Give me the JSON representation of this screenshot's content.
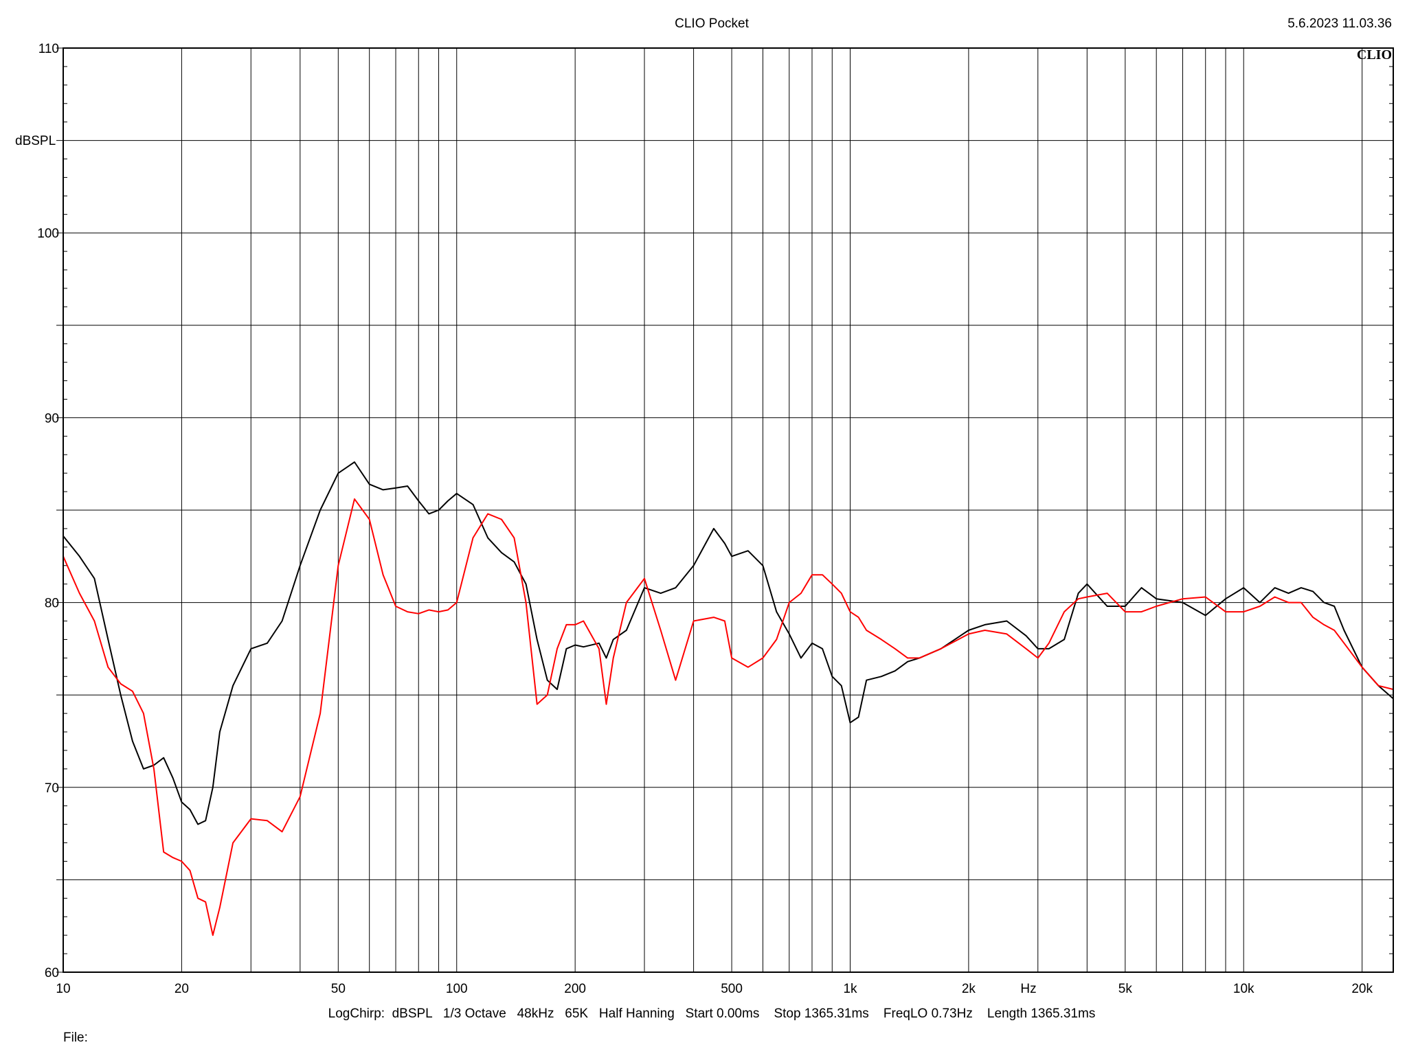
{
  "header": {
    "title": "CLIO Pocket",
    "timestamp": "5.6.2023 11.03.36",
    "logo": "CLIO"
  },
  "footer": {
    "settings": "LogChirp:  dBSPL   1/3 Octave   48kHz   65K   Half Hanning   Start 0.00ms    Stop 1365.31ms    FreqLO 0.73Hz    Length 1365.31ms",
    "file_label": "File:"
  },
  "colors": {
    "series_black": "#000000",
    "series_red": "#ff0000",
    "grid": "#000000"
  },
  "chart_data": {
    "type": "line",
    "title": "CLIO Pocket",
    "xlabel": "Hz",
    "ylabel": "dBSPL",
    "xscale": "log",
    "xlim": [
      10,
      24000
    ],
    "ylim": [
      60,
      110
    ],
    "grid": true,
    "x_ticks": [
      {
        "value": 10,
        "label": "10"
      },
      {
        "value": 20,
        "label": "20"
      },
      {
        "value": 50,
        "label": "50"
      },
      {
        "value": 100,
        "label": "100"
      },
      {
        "value": 200,
        "label": "200"
      },
      {
        "value": 500,
        "label": "500"
      },
      {
        "value": 1000,
        "label": "1k"
      },
      {
        "value": 2000,
        "label": "2k"
      },
      {
        "value": 5000,
        "label": "5k"
      },
      {
        "value": 10000,
        "label": "10k"
      },
      {
        "value": 20000,
        "label": "20k"
      }
    ],
    "y_ticks": [
      {
        "value": 60,
        "label": "60"
      },
      {
        "value": 70,
        "label": "70"
      },
      {
        "value": 80,
        "label": "80"
      },
      {
        "value": 90,
        "label": "90"
      },
      {
        "value": 100,
        "label": "100"
      },
      {
        "value": 110,
        "label": "110"
      }
    ],
    "series": [
      {
        "color": "#000000",
        "points": [
          [
            10,
            83.6
          ],
          [
            11,
            82.5
          ],
          [
            12,
            81.3
          ],
          [
            13,
            78.0
          ],
          [
            14,
            75.0
          ],
          [
            15,
            72.5
          ],
          [
            16,
            71.0
          ],
          [
            17,
            71.2
          ],
          [
            18,
            71.6
          ],
          [
            19,
            70.5
          ],
          [
            20,
            69.2
          ],
          [
            21,
            68.8
          ],
          [
            22,
            68.0
          ],
          [
            23,
            68.2
          ],
          [
            24,
            70.0
          ],
          [
            25,
            73.0
          ],
          [
            27,
            75.5
          ],
          [
            30,
            77.5
          ],
          [
            33,
            77.8
          ],
          [
            36,
            79.0
          ],
          [
            40,
            82.0
          ],
          [
            45,
            85.0
          ],
          [
            50,
            87.0
          ],
          [
            55,
            87.6
          ],
          [
            60,
            86.4
          ],
          [
            65,
            86.1
          ],
          [
            70,
            86.2
          ],
          [
            75,
            86.3
          ],
          [
            80,
            85.5
          ],
          [
            85,
            84.8
          ],
          [
            90,
            85.0
          ],
          [
            95,
            85.5
          ],
          [
            100,
            85.9
          ],
          [
            110,
            85.3
          ],
          [
            120,
            83.5
          ],
          [
            130,
            82.7
          ],
          [
            140,
            82.2
          ],
          [
            150,
            81.0
          ],
          [
            160,
            78.0
          ],
          [
            170,
            75.8
          ],
          [
            180,
            75.3
          ],
          [
            190,
            77.5
          ],
          [
            200,
            77.7
          ],
          [
            210,
            77.6
          ],
          [
            230,
            77.8
          ],
          [
            240,
            77.0
          ],
          [
            250,
            78.0
          ],
          [
            270,
            78.5
          ],
          [
            300,
            80.8
          ],
          [
            330,
            80.5
          ],
          [
            360,
            80.8
          ],
          [
            400,
            82.0
          ],
          [
            450,
            84.0
          ],
          [
            480,
            83.2
          ],
          [
            500,
            82.5
          ],
          [
            550,
            82.8
          ],
          [
            600,
            82.0
          ],
          [
            650,
            79.5
          ],
          [
            700,
            78.3
          ],
          [
            750,
            77.0
          ],
          [
            800,
            77.8
          ],
          [
            850,
            77.5
          ],
          [
            900,
            76.0
          ],
          [
            950,
            75.5
          ],
          [
            1000,
            73.5
          ],
          [
            1050,
            73.8
          ],
          [
            1100,
            75.8
          ],
          [
            1200,
            76.0
          ],
          [
            1300,
            76.3
          ],
          [
            1400,
            76.8
          ],
          [
            1500,
            77.0
          ],
          [
            1700,
            77.5
          ],
          [
            2000,
            78.5
          ],
          [
            2200,
            78.8
          ],
          [
            2500,
            79.0
          ],
          [
            2800,
            78.2
          ],
          [
            3000,
            77.5
          ],
          [
            3200,
            77.5
          ],
          [
            3500,
            78.0
          ],
          [
            3800,
            80.5
          ],
          [
            4000,
            81.0
          ],
          [
            4500,
            79.8
          ],
          [
            5000,
            79.8
          ],
          [
            5500,
            80.8
          ],
          [
            6000,
            80.2
          ],
          [
            7000,
            80.0
          ],
          [
            8000,
            79.3
          ],
          [
            9000,
            80.2
          ],
          [
            10000,
            80.8
          ],
          [
            11000,
            80.0
          ],
          [
            12000,
            80.8
          ],
          [
            13000,
            80.5
          ],
          [
            14000,
            80.8
          ],
          [
            15000,
            80.6
          ],
          [
            16000,
            80.0
          ],
          [
            17000,
            79.8
          ],
          [
            18000,
            78.5
          ],
          [
            20000,
            76.5
          ],
          [
            22000,
            75.5
          ],
          [
            24000,
            74.8
          ]
        ]
      },
      {
        "color": "#ff0000",
        "points": [
          [
            10,
            82.5
          ],
          [
            11,
            80.5
          ],
          [
            12,
            79.0
          ],
          [
            13,
            76.5
          ],
          [
            14,
            75.6
          ],
          [
            15,
            75.2
          ],
          [
            16,
            74.0
          ],
          [
            17,
            71.0
          ],
          [
            18,
            66.5
          ],
          [
            19,
            66.2
          ],
          [
            20,
            66.0
          ],
          [
            21,
            65.5
          ],
          [
            22,
            64.0
          ],
          [
            23,
            63.8
          ],
          [
            24,
            62.0
          ],
          [
            25,
            63.5
          ],
          [
            27,
            67.0
          ],
          [
            30,
            68.3
          ],
          [
            33,
            68.2
          ],
          [
            36,
            67.6
          ],
          [
            40,
            69.5
          ],
          [
            45,
            74.0
          ],
          [
            50,
            82.0
          ],
          [
            55,
            85.6
          ],
          [
            60,
            84.5
          ],
          [
            65,
            81.5
          ],
          [
            70,
            79.8
          ],
          [
            75,
            79.5
          ],
          [
            80,
            79.4
          ],
          [
            85,
            79.6
          ],
          [
            90,
            79.5
          ],
          [
            95,
            79.6
          ],
          [
            100,
            80.0
          ],
          [
            110,
            83.5
          ],
          [
            120,
            84.8
          ],
          [
            130,
            84.5
          ],
          [
            140,
            83.5
          ],
          [
            150,
            80.0
          ],
          [
            160,
            74.5
          ],
          [
            170,
            75.0
          ],
          [
            180,
            77.5
          ],
          [
            190,
            78.8
          ],
          [
            200,
            78.8
          ],
          [
            210,
            79.0
          ],
          [
            230,
            77.5
          ],
          [
            240,
            74.5
          ],
          [
            250,
            77.0
          ],
          [
            270,
            80.0
          ],
          [
            300,
            81.3
          ],
          [
            330,
            78.5
          ],
          [
            360,
            75.8
          ],
          [
            400,
            79.0
          ],
          [
            450,
            79.2
          ],
          [
            480,
            79.0
          ],
          [
            500,
            77.0
          ],
          [
            550,
            76.5
          ],
          [
            600,
            77.0
          ],
          [
            650,
            78.0
          ],
          [
            700,
            80.0
          ],
          [
            750,
            80.5
          ],
          [
            800,
            81.5
          ],
          [
            850,
            81.5
          ],
          [
            900,
            81.0
          ],
          [
            950,
            80.5
          ],
          [
            1000,
            79.5
          ],
          [
            1050,
            79.2
          ],
          [
            1100,
            78.5
          ],
          [
            1200,
            78.0
          ],
          [
            1300,
            77.5
          ],
          [
            1400,
            77.0
          ],
          [
            1500,
            77.0
          ],
          [
            1700,
            77.5
          ],
          [
            2000,
            78.3
          ],
          [
            2200,
            78.5
          ],
          [
            2500,
            78.3
          ],
          [
            2800,
            77.5
          ],
          [
            3000,
            77.0
          ],
          [
            3200,
            77.8
          ],
          [
            3500,
            79.5
          ],
          [
            3800,
            80.2
          ],
          [
            4000,
            80.3
          ],
          [
            4500,
            80.5
          ],
          [
            5000,
            79.5
          ],
          [
            5500,
            79.5
          ],
          [
            6000,
            79.8
          ],
          [
            7000,
            80.2
          ],
          [
            8000,
            80.3
          ],
          [
            9000,
            79.5
          ],
          [
            10000,
            79.5
          ],
          [
            11000,
            79.8
          ],
          [
            12000,
            80.3
          ],
          [
            13000,
            80.0
          ],
          [
            14000,
            80.0
          ],
          [
            15000,
            79.2
          ],
          [
            16000,
            78.8
          ],
          [
            17000,
            78.5
          ],
          [
            18000,
            77.8
          ],
          [
            20000,
            76.5
          ],
          [
            22000,
            75.5
          ],
          [
            24000,
            75.3
          ]
        ]
      }
    ]
  }
}
